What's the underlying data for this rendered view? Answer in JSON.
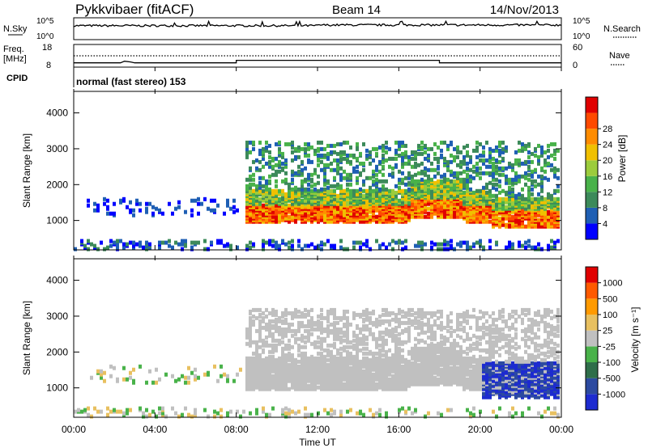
{
  "header": {
    "station": "Pykkvibaer (fitACF)",
    "beam": "Beam 14",
    "date": "14/Nov/2013"
  },
  "colors": {
    "power_scale": [
      "#0000ff",
      "#1f5fb4",
      "#3c8a5a",
      "#49b24a",
      "#9ccc3c",
      "#f0c000",
      "#ff8c00",
      "#ff4a00",
      "#e00000"
    ],
    "velocity_scale": [
      "#1d2bd0",
      "#2c4aa0",
      "#2f6e4a",
      "#49b24a",
      "#c0c0c0",
      "#e8c060",
      "#ff9a00",
      "#ff5a00",
      "#e00000"
    ]
  },
  "chart_data": [
    {
      "type": "line",
      "panel": "noise",
      "series": [
        {
          "name": "N.Sky",
          "style": "solid"
        },
        {
          "name": "N.Search",
          "style": "dotted"
        }
      ],
      "y_ticks_left": [
        "10^5",
        "10^0"
      ],
      "y_ticks_right": [
        "10^5",
        "10^0"
      ],
      "x_range_hours": [
        0,
        24
      ]
    },
    {
      "type": "line",
      "panel": "frequency",
      "series": [
        {
          "name": "Freq.",
          "unit": "[MHz]",
          "style": "solid",
          "x": [
            0,
            2.3,
            2.5,
            2.8,
            3.0,
            8.0,
            8.0,
            18.0,
            18.0,
            24.0
          ],
          "y": [
            9.9,
            9.9,
            10.6,
            10.3,
            9.9,
            9.9,
            11.0,
            11.0,
            9.9,
            9.9
          ]
        },
        {
          "name": "Nave",
          "style": "dotted",
          "x": [
            0,
            24
          ],
          "y": [
            30,
            30
          ]
        }
      ],
      "y_ticks_left": [
        "18",
        "8"
      ],
      "y_ticks_right": [
        "60",
        "0"
      ],
      "ylim_left": [
        8,
        18
      ],
      "ylim_right": [
        0,
        60
      ]
    },
    {
      "type": "table",
      "panel": "cpid",
      "label": "CPID",
      "text": "normal (fast stereo) 153"
    },
    {
      "type": "heatmap",
      "panel": "power",
      "ylabel": "Slant Range [km]",
      "yticks": [
        1000,
        2000,
        3000,
        4000
      ],
      "ylim": [
        180,
        4600
      ],
      "colorbar": {
        "label": "Power [dB]",
        "ticks": [
          "4",
          "8",
          "12",
          "16",
          "20",
          "24",
          "28"
        ],
        "range": [
          0,
          32
        ]
      }
    },
    {
      "type": "heatmap",
      "panel": "velocity",
      "ylabel": "Slant Range [km]",
      "yticks": [
        1000,
        2000,
        3000,
        4000
      ],
      "ylim": [
        180,
        4600
      ],
      "colorbar": {
        "label": "Velocity [m s⁻¹]",
        "ticks": [
          "1000",
          "500",
          "100",
          "25",
          "-25",
          "-100",
          "-500",
          "-1000"
        ]
      }
    }
  ],
  "x_axis": {
    "title": "Time UT",
    "ticks": [
      "00:00",
      "04:00",
      "08:00",
      "12:00",
      "16:00",
      "20:00",
      "00:00"
    ],
    "tick_hours": [
      0,
      4,
      8,
      12,
      16,
      20,
      24
    ]
  }
}
